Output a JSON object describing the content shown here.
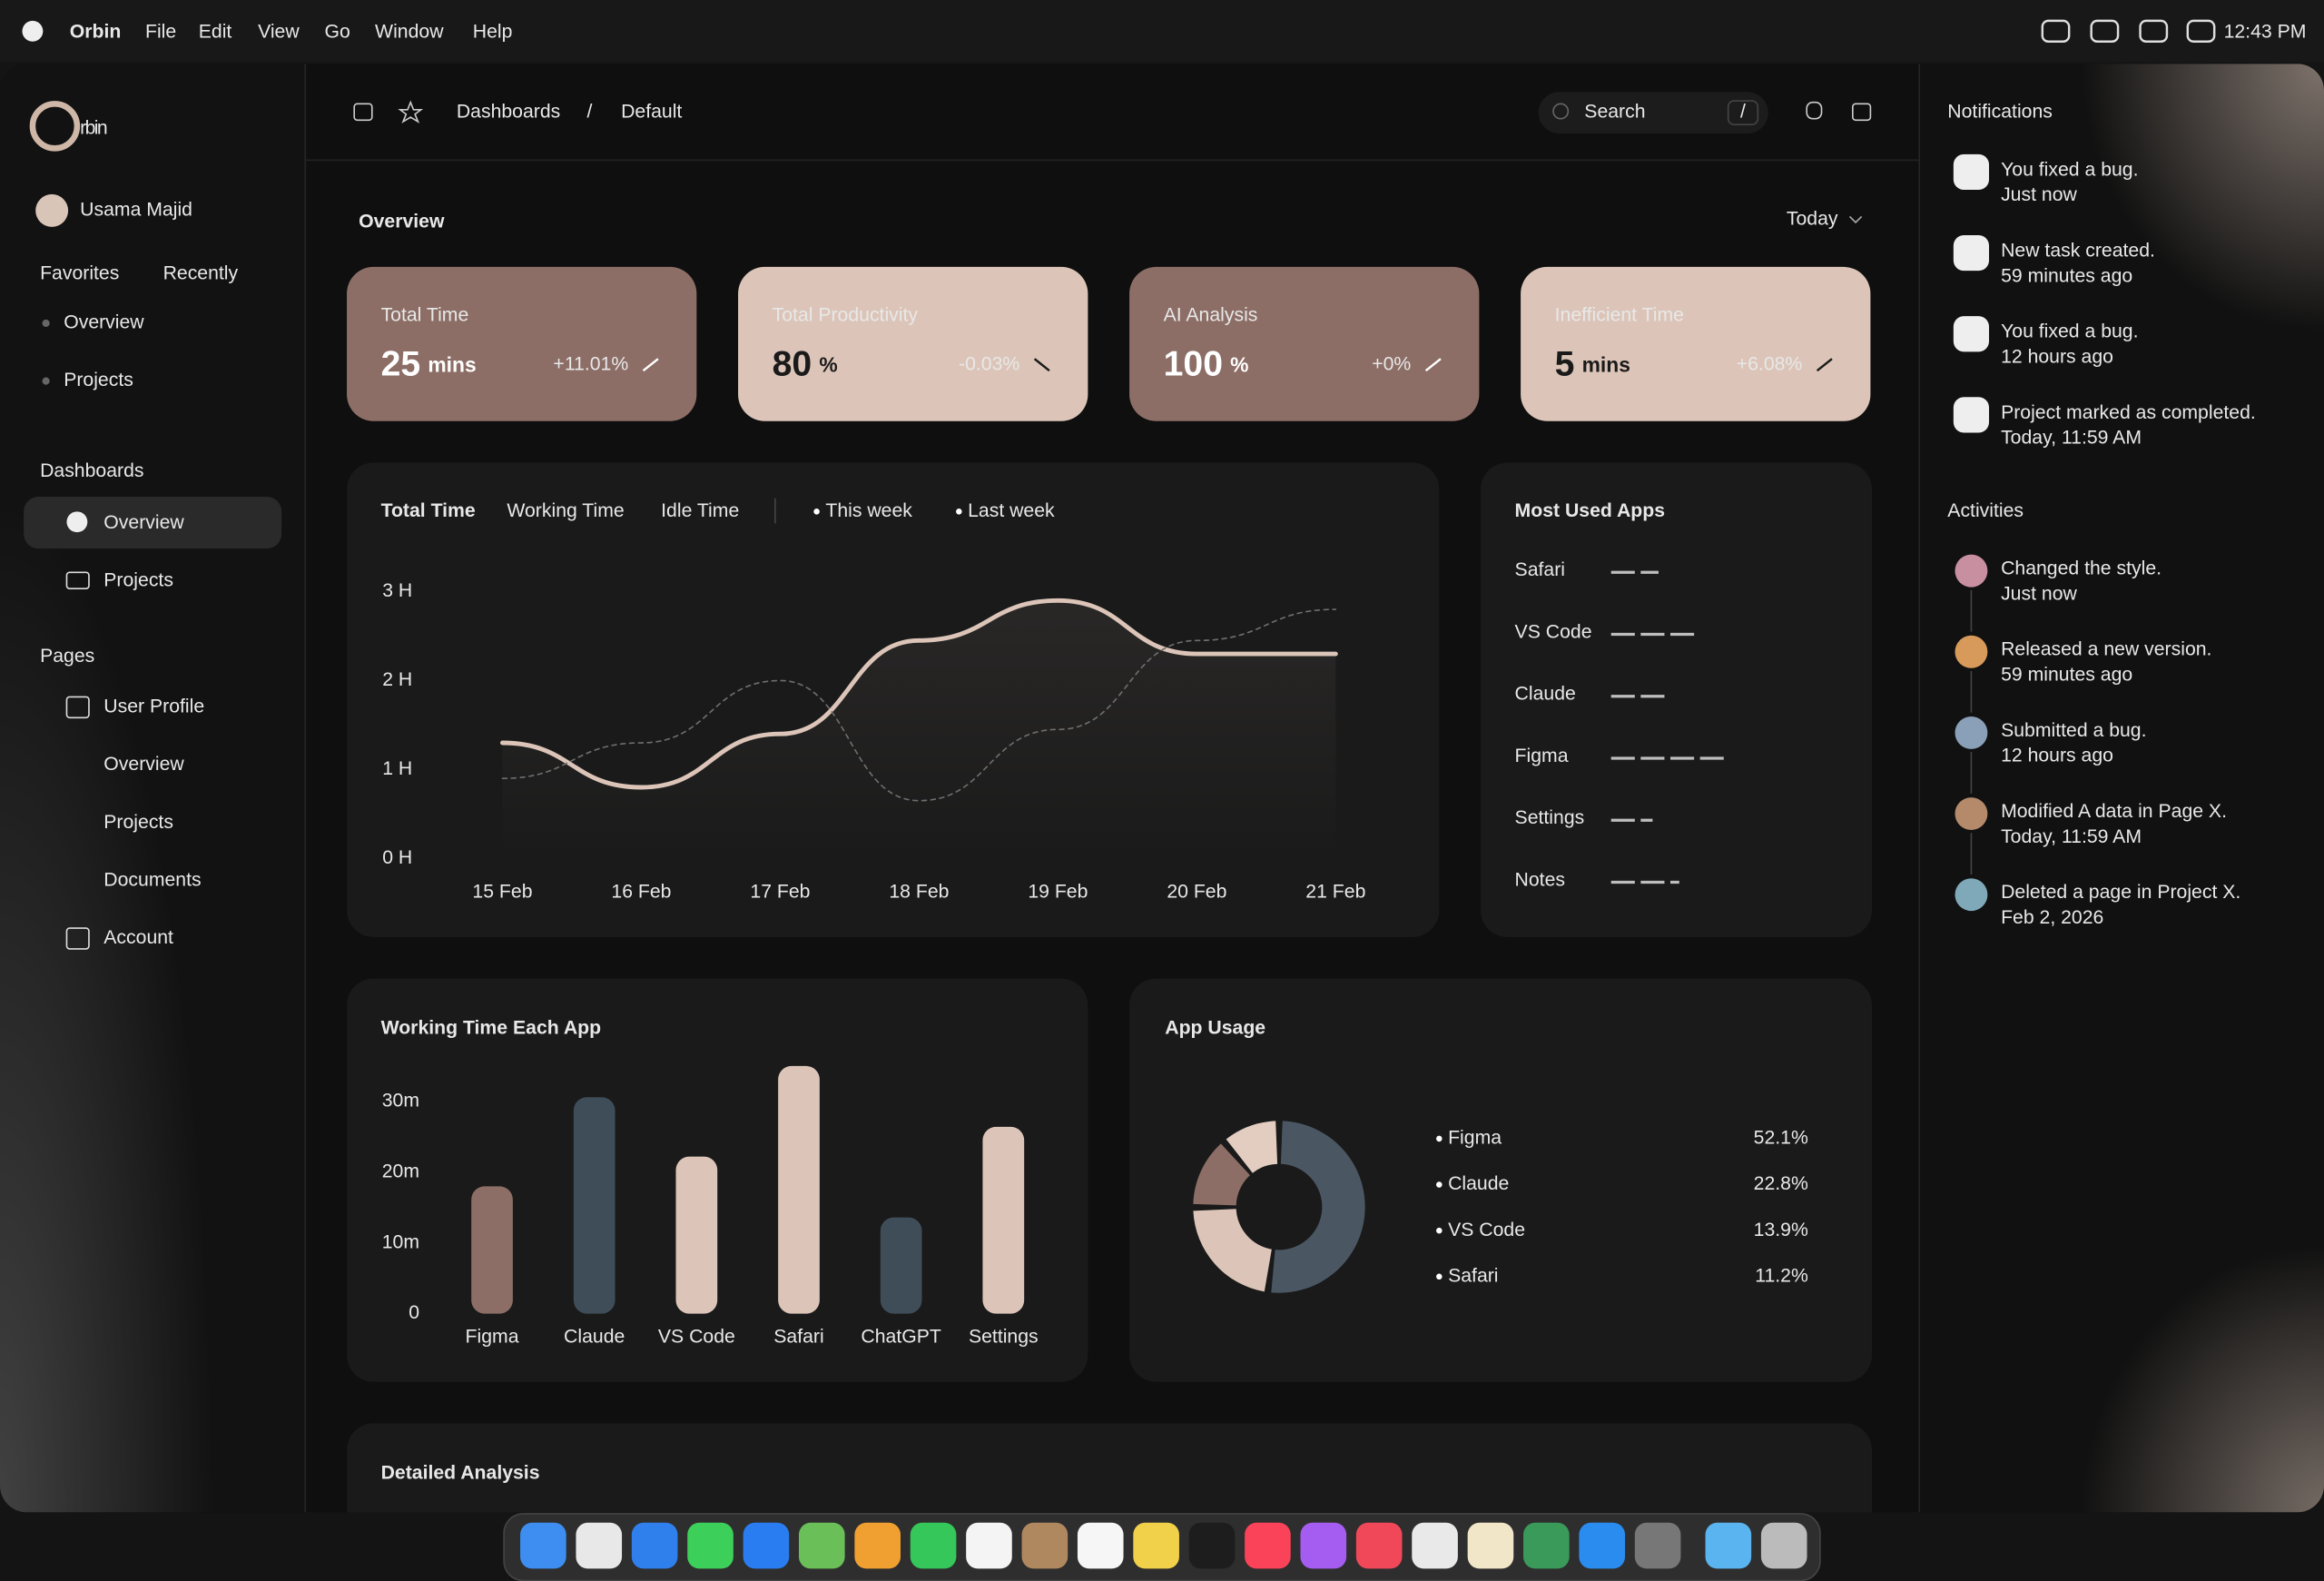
{
  "menubar": {
    "app": "Orbin",
    "menus": [
      "File",
      "Edit",
      "View",
      "Go",
      "Window",
      "Help"
    ],
    "time": "12:43 PM"
  },
  "sidebar": {
    "logo": "rbin",
    "user": "Usama Majid",
    "tabs": [
      "Favorites",
      "Recently"
    ],
    "favorites": [
      "Overview",
      "Projects"
    ],
    "dashboards": {
      "title": "Dashboards",
      "items": [
        "Overview",
        "Projects"
      ]
    },
    "pages": {
      "title": "Pages",
      "items": [
        "User Profile",
        "Overview",
        "Projects",
        "Documents",
        "Account"
      ]
    }
  },
  "topbar": {
    "breadcrumb": [
      "Dashboards",
      "/",
      "Default"
    ],
    "search": "Search",
    "shortcut": "/"
  },
  "overview": {
    "title": "Overview",
    "period": "Today",
    "cards": [
      {
        "title": "Total Time",
        "value": "25",
        "unit": "mins",
        "change": "+11.01%"
      },
      {
        "title": "Total Productivity",
        "value": "80",
        "unit": "%",
        "change": "-0.03%"
      },
      {
        "title": "AI Analysis",
        "value": "100",
        "unit": "%",
        "change": "+0%"
      },
      {
        "title": "Inefficient Time",
        "value": "5",
        "unit": "mins",
        "change": "+6.08%"
      }
    ]
  },
  "chart_data": [
    {
      "type": "line",
      "tabs": [
        "Total Time",
        "Working Time",
        "Idle Time"
      ],
      "categories": [
        "15 Feb",
        "16 Feb",
        "17 Feb",
        "18 Feb",
        "19 Feb",
        "20 Feb",
        "21 Feb"
      ],
      "series": [
        {
          "name": "This week",
          "color": "#dcc5b8",
          "values": [
            1.3,
            0.8,
            1.4,
            2.45,
            2.9,
            2.3,
            2.3
          ]
        },
        {
          "name": "Last week",
          "color": "#6e6e6e",
          "dashed": true,
          "values": [
            0.9,
            1.3,
            2.0,
            0.65,
            1.45,
            2.45,
            2.8
          ]
        }
      ],
      "ylim": [
        0,
        3
      ],
      "yticks": [
        {
          "value": 0,
          "label": "0 H"
        },
        {
          "value": 1,
          "label": "1 H"
        },
        {
          "value": 2,
          "label": "2 H"
        },
        {
          "value": 3,
          "label": "3 H"
        }
      ]
    },
    {
      "type": "hbar",
      "title": "Most Used Apps",
      "categories": [
        "Safari",
        "VS Code",
        "Claude",
        "Figma",
        "Settings",
        "Notes"
      ],
      "values": [
        32,
        58,
        38,
        78,
        28,
        46
      ],
      "color": "#e8e8e8"
    },
    {
      "type": "bar",
      "title": "Working Time Each App",
      "categories": [
        "Figma",
        "Claude",
        "VS Code",
        "Safari",
        "ChatGPT",
        "Settings"
      ],
      "values": [
        18,
        30.6,
        22.2,
        35,
        13.6,
        26.4
      ],
      "colors": [
        "#8c6e66",
        "#3f4d58",
        "#dcc5b8",
        "#dcc5b8",
        "#3f4d58",
        "#dcc5b8"
      ],
      "ylim": [
        0,
        35
      ],
      "yticks": [
        0,
        {
          "value": 10,
          "label": "10m"
        },
        {
          "value": 20,
          "label": "20m"
        },
        {
          "value": 30,
          "label": "30m"
        }
      ]
    },
    {
      "type": "donut",
      "title": "App Usage",
      "categories": [
        "Figma",
        "Claude",
        "VS Code",
        "Safari"
      ],
      "values": [
        52.1,
        22.8,
        13.9,
        11.2
      ],
      "value_labels": [
        "52.1%",
        "22.8%",
        "13.9%",
        "11.2%"
      ],
      "colors": [
        "#4a5763",
        "#dcc5b8",
        "#8c6e66",
        "#e2cdc0"
      ]
    }
  ],
  "notifications": {
    "title": "Notifications",
    "items": [
      {
        "text": "You fixed a bug.",
        "time": "Just now"
      },
      {
        "text": "New task created.",
        "time": "59 minutes ago"
      },
      {
        "text": "You fixed a bug.",
        "time": "12 hours ago"
      },
      {
        "text": "Project marked as completed.",
        "time": "Today, 11:59 AM"
      }
    ]
  },
  "activities": {
    "title": "Activities",
    "items": [
      {
        "text": "Changed the style.",
        "time": "Just now"
      },
      {
        "text": "Released a new version.",
        "time": "59 minutes ago"
      },
      {
        "text": "Submitted a bug.",
        "time": "12 hours ago"
      },
      {
        "text": "Modified A data in Page X.",
        "time": "Today, 11:59 AM"
      },
      {
        "text": "Deleted a page in Project X.",
        "time": "Feb 2, 2026"
      }
    ]
  },
  "detailed": {
    "title": "Detailed Analysis"
  }
}
